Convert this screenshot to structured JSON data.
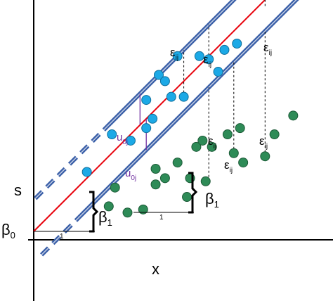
{
  "labels": {
    "y_axis": "s",
    "x_axis": "x",
    "intercept": "β",
    "intercept_sub": "0",
    "slope": "β",
    "slope_sub": "1",
    "run": "1",
    "residual": "ε",
    "residual_sub": "ij",
    "random_effect": "u",
    "random_effect_sub": "0j"
  },
  "colors": {
    "population_line": "#e8000b",
    "group_line": "#3a5fa8",
    "group_line_highlight": "#c8d2e6",
    "upper_points": "#1ca9e6",
    "lower_points": "#2e8b57",
    "random_effect": "#7030a0",
    "axes": "#000000"
  },
  "lines": {
    "population": {
      "intercept": 0,
      "slope": 1
    },
    "upper_group": {
      "intercept": 1,
      "slope": 1,
      "color": "blue"
    },
    "lower_group": {
      "intercept": -1,
      "slope": 1,
      "color": "green"
    }
  },
  "points": {
    "upper_group": [
      [
        1.7,
        1.9
      ],
      [
        2.5,
        3.1
      ],
      [
        3.1,
        2.9
      ],
      [
        3.6,
        4.2
      ],
      [
        3.6,
        3.3
      ],
      [
        3.8,
        3.6
      ],
      [
        4.0,
        5.0
      ],
      [
        4.2,
        4.8
      ],
      [
        4.4,
        4.3
      ],
      [
        4.6,
        5.6
      ],
      [
        4.8,
        4.3
      ],
      [
        5.3,
        5.6
      ],
      [
        5.6,
        5.5
      ],
      [
        5.9,
        5.1
      ],
      [
        6.1,
        5.8
      ],
      [
        6.5,
        6.0
      ]
    ],
    "lower_group": [
      [
        2.4,
        0.8
      ],
      [
        2.6,
        1.4
      ],
      [
        3.0,
        0.6
      ],
      [
        3.5,
        0.7
      ],
      [
        3.9,
        2.0
      ],
      [
        3.9,
        1.5
      ],
      [
        4.2,
        1.7
      ],
      [
        4.6,
        2.2
      ],
      [
        4.9,
        1.1
      ],
      [
        5.0,
        1.7
      ],
      [
        5.2,
        2.7
      ],
      [
        5.4,
        2.9
      ],
      [
        5.5,
        1.6
      ],
      [
        5.7,
        2.7
      ],
      [
        6.2,
        3.1
      ],
      [
        6.4,
        2.5
      ],
      [
        6.6,
        3.3
      ],
      [
        6.7,
        2.2
      ],
      [
        7.4,
        2.4
      ],
      [
        7.7,
        3.1
      ],
      [
        8.3,
        3.7
      ]
    ]
  }
}
